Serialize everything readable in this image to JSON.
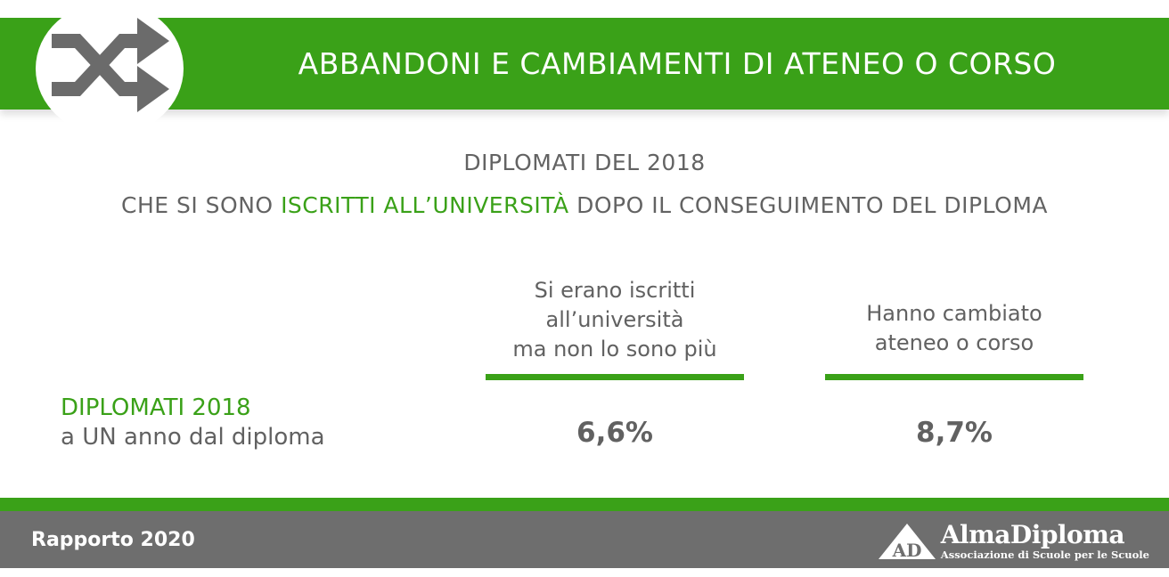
{
  "header": {
    "title": "ABBANDONI E CAMBIAMENTI DI ATENEO O CORSO",
    "icon": "shuffle-icon"
  },
  "subtitle": {
    "line1": "DIPLOMATI DEL 2018",
    "line2_pre": "CHE SI SONO ",
    "line2_highlight": "ISCRITTI ALL’UNIVERSITÀ",
    "line2_post": " DOPO IL CONSEGUIMENTO DEL DIPLOMA"
  },
  "table": {
    "columns": [
      {
        "lines": [
          "Si erano iscritti",
          "all’università",
          "ma non lo sono più"
        ]
      },
      {
        "lines": [
          "Hanno cambiato",
          "ateneo o corso"
        ]
      }
    ],
    "row": {
      "label_line1": "DIPLOMATI 2018",
      "label_line2": "a UN anno dal diploma",
      "values": [
        "6,6%",
        "8,7%"
      ]
    }
  },
  "footer": {
    "report": "Rapporto 2020",
    "logo_initials": "AD",
    "logo_name": "AlmaDiploma",
    "logo_tagline": "Associazione di Scuole per le Scuole"
  },
  "colors": {
    "accent_green": "#3aa118",
    "text_gray": "#616161",
    "footer_gray": "#6e6e6e"
  }
}
